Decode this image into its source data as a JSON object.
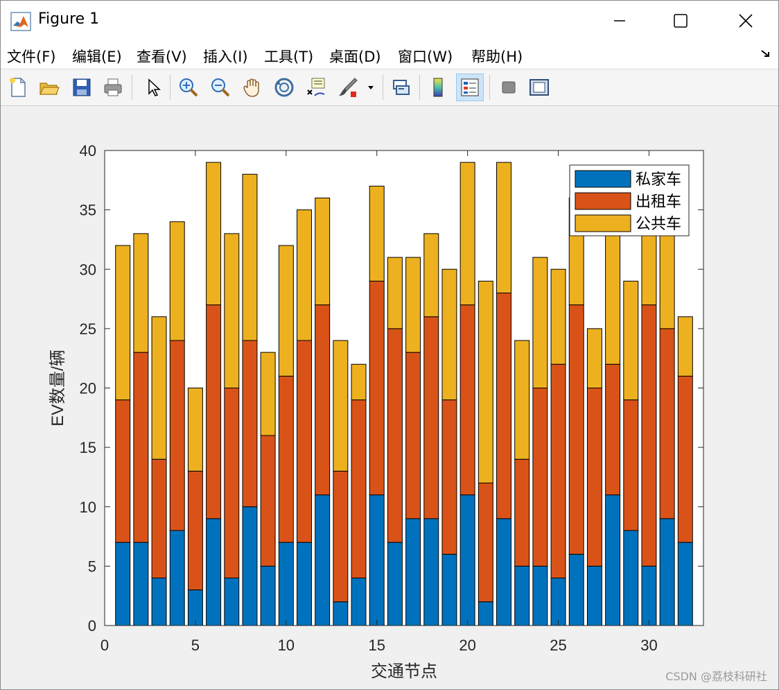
{
  "window": {
    "title": "Figure 1",
    "icon": "matlab-logo-icon"
  },
  "menu": {
    "items": [
      "文件(F)",
      "编辑(E)",
      "查看(V)",
      "插入(I)",
      "工具(T)",
      "桌面(D)",
      "窗口(W)",
      "帮助(H)"
    ]
  },
  "toolbar": {
    "buttons": [
      "new-figure-icon",
      "open-icon",
      "save-icon",
      "print-icon",
      "pointer-icon",
      "zoom-in-icon",
      "zoom-out-icon",
      "pan-hand-icon",
      "rotate-3d-icon",
      "data-cursor-icon",
      "brush-icon",
      "link-plot-icon",
      "colorbar-icon",
      "legend-icon",
      "hide-plot-tools-icon",
      "show-plot-tools-icon"
    ]
  },
  "colors": {
    "private": "#0072BD",
    "taxi": "#D95319",
    "bus": "#EDB120"
  },
  "chart_data": {
    "type": "bar",
    "stacked": true,
    "x": [
      1,
      2,
      3,
      4,
      5,
      6,
      7,
      8,
      9,
      10,
      11,
      12,
      13,
      14,
      15,
      16,
      17,
      18,
      19,
      20,
      21,
      22,
      23,
      24,
      25,
      26,
      27,
      28,
      29,
      30,
      31,
      32
    ],
    "series": [
      {
        "name": "私家车",
        "values": [
          7,
          7,
          4,
          8,
          3,
          9,
          4,
          10,
          5,
          7,
          7,
          11,
          2,
          4,
          11,
          7,
          9,
          9,
          6,
          11,
          2,
          9,
          5,
          5,
          4,
          6,
          5,
          11,
          8,
          5,
          9,
          7
        ]
      },
      {
        "name": "出租车",
        "values": [
          12,
          16,
          10,
          16,
          10,
          18,
          16,
          14,
          11,
          14,
          17,
          16,
          11,
          15,
          18,
          18,
          14,
          17,
          13,
          16,
          10,
          19,
          9,
          15,
          18,
          21,
          15,
          11,
          11,
          22,
          16,
          14
        ]
      },
      {
        "name": "公共车",
        "values": [
          13,
          10,
          12,
          10,
          7,
          12,
          13,
          14,
          7,
          11,
          11,
          9,
          11,
          3,
          8,
          6,
          8,
          7,
          11,
          12,
          17,
          11,
          10,
          11,
          8,
          9,
          5,
          12,
          10,
          7,
          9,
          5
        ]
      }
    ],
    "xlabel": "交通节点",
    "ylabel": "EV数量/辆",
    "xlim": [
      0,
      33
    ],
    "ylim": [
      0,
      40
    ],
    "xticks": [
      0,
      5,
      10,
      15,
      20,
      25,
      30
    ],
    "yticks": [
      0,
      5,
      10,
      15,
      20,
      25,
      30,
      35,
      40
    ],
    "grid": false,
    "legend_position": "top-right"
  },
  "watermark": "CSDN @荔枝科研社"
}
